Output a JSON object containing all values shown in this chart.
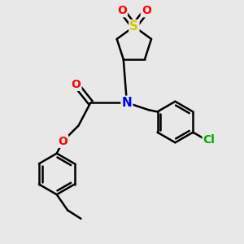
{
  "bg_color": "#e8e8e8",
  "atom_colors": {
    "S": "#cccc00",
    "O": "#ff0000",
    "N": "#0000ff",
    "Cl": "#00aa00",
    "C": "#000000"
  },
  "bond_color": "#000000",
  "bond_width": 1.8,
  "figsize": [
    3.0,
    3.0
  ],
  "dpi": 100
}
